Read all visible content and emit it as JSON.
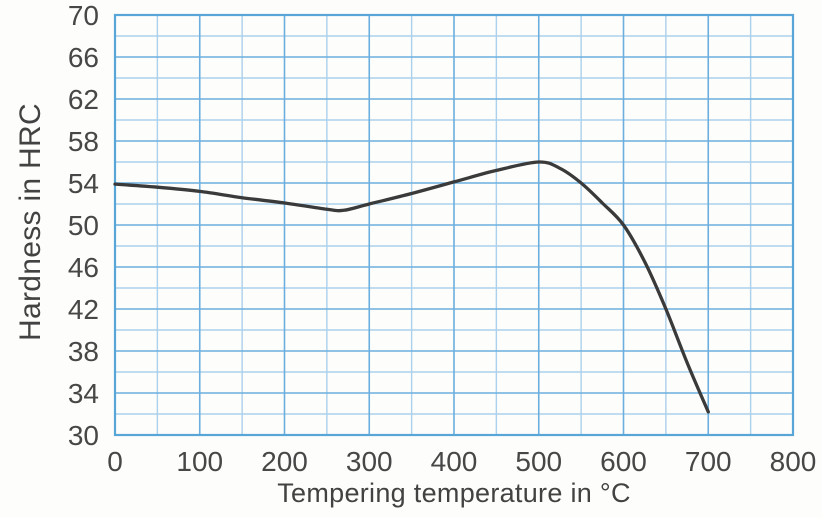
{
  "chart_data": {
    "type": "line",
    "title": "",
    "xlabel": "Tempering temperature in °C",
    "ylabel": "Hardness in HRC",
    "xlim": [
      0,
      800
    ],
    "ylim": [
      30,
      70
    ],
    "x_ticks": [
      0,
      100,
      200,
      300,
      400,
      500,
      600,
      700,
      800
    ],
    "y_ticks": [
      30,
      34,
      38,
      42,
      46,
      50,
      54,
      58,
      62,
      66,
      70
    ],
    "x_minor_step": 50,
    "y_minor_step": 2,
    "grid": "on",
    "legend": "none",
    "series": [
      {
        "name": "hardness-vs-tempering-temperature",
        "points": [
          [
            0,
            53.9
          ],
          [
            50,
            53.6
          ],
          [
            100,
            53.2
          ],
          [
            150,
            52.6
          ],
          [
            200,
            52.1
          ],
          [
            250,
            51.5
          ],
          [
            270,
            51.4
          ],
          [
            300,
            52.0
          ],
          [
            350,
            53.0
          ],
          [
            400,
            54.1
          ],
          [
            450,
            55.2
          ],
          [
            500,
            56.0
          ],
          [
            525,
            55.4
          ],
          [
            550,
            54.0
          ],
          [
            575,
            52.1
          ],
          [
            600,
            50.0
          ],
          [
            625,
            46.5
          ],
          [
            650,
            42.0
          ],
          [
            675,
            36.9
          ],
          [
            700,
            32.2
          ]
        ]
      }
    ]
  },
  "colors": {
    "background": "#fdfdfb",
    "grid_minor": "#abd1ed",
    "grid_major": "#6cafdf",
    "frame": "#58a5d8",
    "curve": "#3a3a3a",
    "text": "#474747"
  }
}
